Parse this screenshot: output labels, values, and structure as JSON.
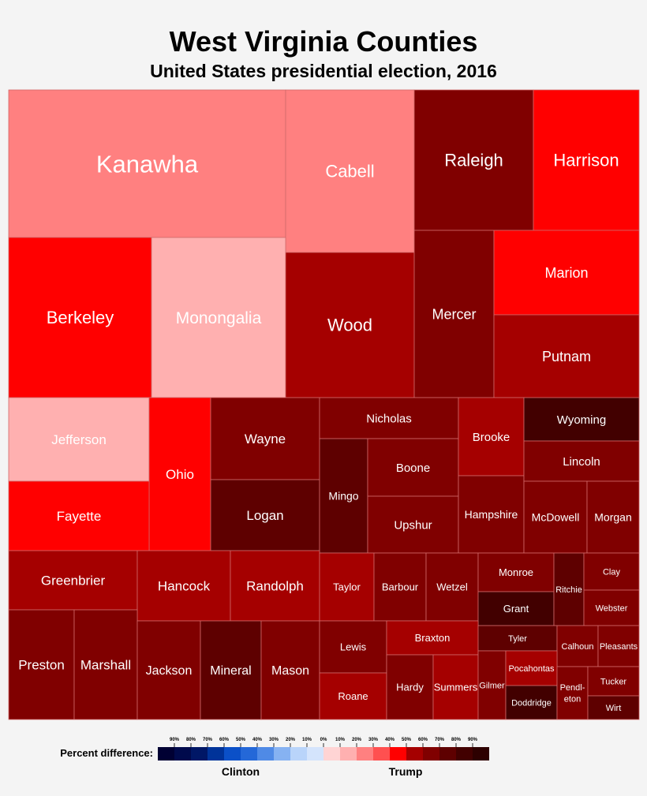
{
  "chart_data": {
    "type": "treemap",
    "title": "West Virginia Counties",
    "subtitle": "United States presidential election, 2016",
    "counties": [
      {
        "name": "Kanawha",
        "margin": 20
      },
      {
        "name": "Cabell",
        "margin": 20
      },
      {
        "name": "Raleigh",
        "margin": 60
      },
      {
        "name": "Harrison",
        "margin": 40
      },
      {
        "name": "Berkeley",
        "margin": 40
      },
      {
        "name": "Monongalia",
        "margin": 10
      },
      {
        "name": "Wood",
        "margin": 50
      },
      {
        "name": "Mercer",
        "margin": 60
      },
      {
        "name": "Marion",
        "margin": 40
      },
      {
        "name": "Putnam",
        "margin": 50
      },
      {
        "name": "Jefferson",
        "margin": 10
      },
      {
        "name": "Ohio",
        "margin": 40
      },
      {
        "name": "Wayne",
        "margin": 60
      },
      {
        "name": "Logan",
        "margin": 70
      },
      {
        "name": "Nicholas",
        "margin": 60
      },
      {
        "name": "Mingo",
        "margin": 70
      },
      {
        "name": "Boone",
        "margin": 60
      },
      {
        "name": "Upshur",
        "margin": 60
      },
      {
        "name": "Brooke",
        "margin": 50
      },
      {
        "name": "Hampshire",
        "margin": 60
      },
      {
        "name": "Wyoming",
        "margin": 80
      },
      {
        "name": "Lincoln",
        "margin": 60
      },
      {
        "name": "McDowell",
        "margin": 60
      },
      {
        "name": "Morgan",
        "margin": 60
      },
      {
        "name": "Fayette",
        "margin": 40
      },
      {
        "name": "Greenbrier",
        "margin": 50
      },
      {
        "name": "Hancock",
        "margin": 50
      },
      {
        "name": "Randolph",
        "margin": 50
      },
      {
        "name": "Taylor",
        "margin": 50
      },
      {
        "name": "Barbour",
        "margin": 60
      },
      {
        "name": "Wetzel",
        "margin": 60
      },
      {
        "name": "Monroe",
        "margin": 60
      },
      {
        "name": "Grant",
        "margin": 80
      },
      {
        "name": "Ritchie",
        "margin": 70
      },
      {
        "name": "Clay",
        "margin": 60
      },
      {
        "name": "Webster",
        "margin": 60
      },
      {
        "name": "Preston",
        "margin": 60
      },
      {
        "name": "Marshall",
        "margin": 60
      },
      {
        "name": "Jackson",
        "margin": 60
      },
      {
        "name": "Mineral",
        "margin": 70
      },
      {
        "name": "Mason",
        "margin": 60
      },
      {
        "name": "Lewis",
        "margin": 60
      },
      {
        "name": "Roane",
        "margin": 50
      },
      {
        "name": "Braxton",
        "margin": 50
      },
      {
        "name": "Hardy",
        "margin": 60
      },
      {
        "name": "Summers",
        "margin": 50
      },
      {
        "name": "Tyler",
        "margin": 70
      },
      {
        "name": "Calhoun",
        "margin": 60
      },
      {
        "name": "Pleasants",
        "margin": 60
      },
      {
        "name": "Gilmer",
        "margin": 60
      },
      {
        "name": "Pocahontas",
        "margin": 50
      },
      {
        "name": "Doddridge",
        "margin": 80
      },
      {
        "name": "Pendl-eton",
        "margin": 60
      },
      {
        "name": "Tucker",
        "margin": 60
      },
      {
        "name": "Wirt",
        "margin": 70
      }
    ],
    "legend": {
      "label": "Percent difference:",
      "clinton_label": "Clinton",
      "trump_label": "Trump",
      "clinton_ticks": [
        "90%",
        "80%",
        "70%",
        "60%",
        "50%",
        "40%",
        "30%",
        "20%",
        "10%"
      ],
      "zero_tick": "0%",
      "trump_ticks": [
        "10%",
        "20%",
        "30%",
        "40%",
        "50%",
        "60%",
        "70%",
        "80%",
        "90%"
      ],
      "clinton_colors": [
        "#000033",
        "#000a4c",
        "#001766",
        "#003399",
        "#0b50c8",
        "#2468d8",
        "#4f8ae6",
        "#86b2f2",
        "#b9d4fa",
        "#d4e4fc"
      ],
      "trump_colors": [
        "#ffd4d4",
        "#ffb0b0",
        "#ff8080",
        "#ff5050",
        "#ff0000",
        "#a50000",
        "#800000",
        "#5e0000",
        "#420000",
        "#2d0000"
      ]
    }
  }
}
